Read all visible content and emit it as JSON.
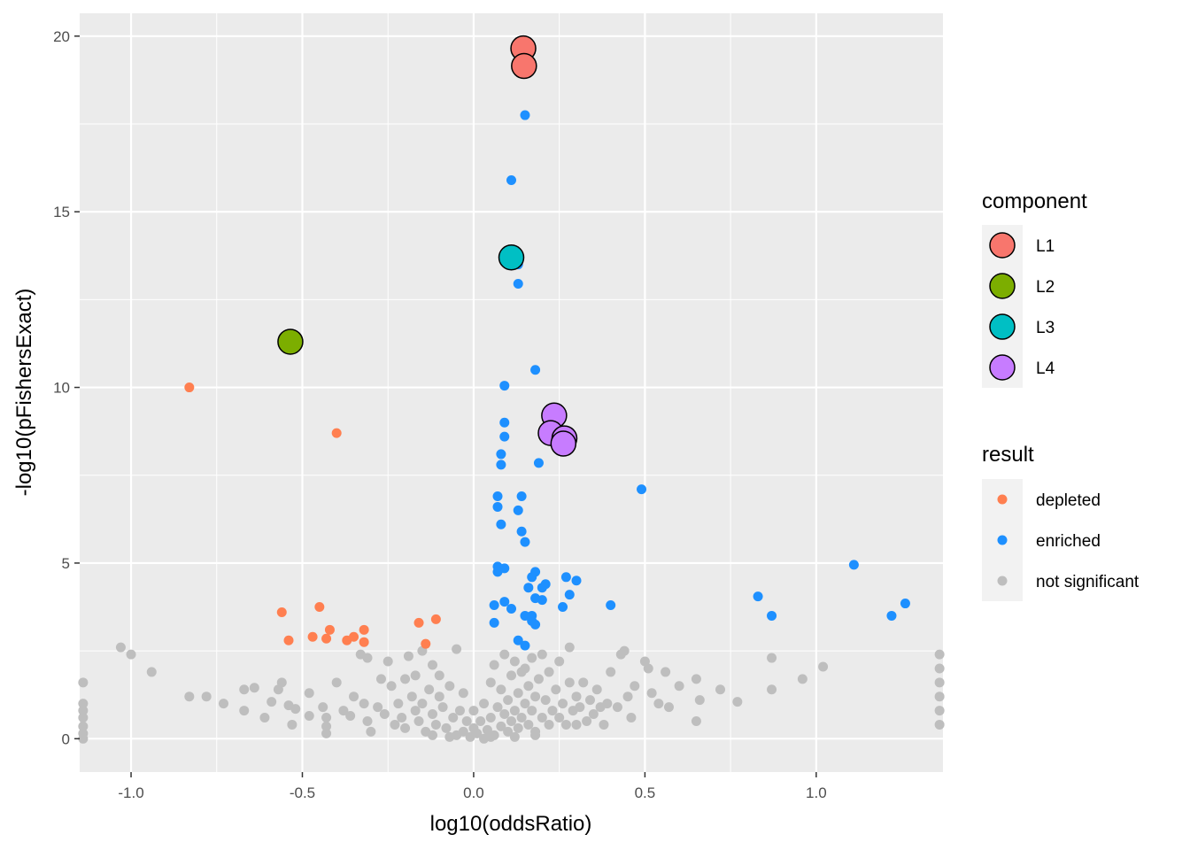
{
  "chart_data": {
    "type": "scatter",
    "title": "",
    "xlabel": "log10(oddsRatio)",
    "ylabel": "-log10(pFishersExact)",
    "xlim": [
      -1.15,
      1.37
    ],
    "ylim": [
      -0.95,
      20.65
    ],
    "x_ticks": [
      -1.0,
      -0.5,
      0.0,
      0.5,
      1.0
    ],
    "x_tick_labels": [
      "-1.0",
      "-0.5",
      "0.0",
      "0.5",
      "1.0"
    ],
    "y_ticks": [
      0,
      5,
      10,
      15,
      20
    ],
    "y_tick_labels": [
      "0",
      "5",
      "10",
      "15",
      "20"
    ],
    "grid": true,
    "legend_position": "right",
    "legends": [
      {
        "title": "component",
        "entries": [
          {
            "label": "L1",
            "color": "#F8766D"
          },
          {
            "label": "L2",
            "color": "#7CAE00"
          },
          {
            "label": "L3",
            "color": "#00BFC4"
          },
          {
            "label": "L4",
            "color": "#C77CFF"
          }
        ]
      },
      {
        "title": "result",
        "entries": [
          {
            "label": "depleted",
            "color": "#FF7F50"
          },
          {
            "label": "enriched",
            "color": "#1E90FF"
          },
          {
            "label": "not significant",
            "color": "#BEBEBE"
          }
        ]
      }
    ],
    "series": [
      {
        "name": "not significant",
        "color": "#BEBEBE",
        "points": [
          [
            -1.14,
            1.6
          ],
          [
            -1.14,
            1.0
          ],
          [
            -1.14,
            0.8
          ],
          [
            -1.14,
            0.6
          ],
          [
            -1.14,
            0.35
          ],
          [
            -1.14,
            0.15
          ],
          [
            -1.14,
            0.0
          ],
          [
            -1.03,
            2.6
          ],
          [
            -1.0,
            2.4
          ],
          [
            -0.94,
            1.9
          ],
          [
            -0.83,
            1.2
          ],
          [
            -0.78,
            1.2
          ],
          [
            -0.73,
            1.0
          ],
          [
            -0.67,
            1.4
          ],
          [
            -0.67,
            0.8
          ],
          [
            -0.64,
            1.45
          ],
          [
            -0.61,
            0.6
          ],
          [
            -0.59,
            1.05
          ],
          [
            -0.57,
            1.4
          ],
          [
            -0.56,
            1.6
          ],
          [
            -0.54,
            0.95
          ],
          [
            -0.53,
            0.4
          ],
          [
            -0.52,
            0.85
          ],
          [
            -0.48,
            1.3
          ],
          [
            -0.48,
            0.65
          ],
          [
            -0.44,
            0.9
          ],
          [
            -0.43,
            0.6
          ],
          [
            -0.43,
            0.35
          ],
          [
            -0.43,
            0.15
          ],
          [
            -0.4,
            1.6
          ],
          [
            -0.38,
            0.8
          ],
          [
            -0.36,
            0.65
          ],
          [
            -0.35,
            1.2
          ],
          [
            -0.33,
            2.4
          ],
          [
            -0.32,
            1.0
          ],
          [
            -0.31,
            0.5
          ],
          [
            -0.31,
            2.3
          ],
          [
            -0.3,
            0.2
          ],
          [
            -0.28,
            0.9
          ],
          [
            -0.27,
            1.7
          ],
          [
            -0.26,
            0.7
          ],
          [
            -0.25,
            2.2
          ],
          [
            -0.24,
            1.5
          ],
          [
            -0.23,
            0.4
          ],
          [
            -0.22,
            1.0
          ],
          [
            -0.21,
            0.6
          ],
          [
            -0.2,
            1.7
          ],
          [
            -0.2,
            0.3
          ],
          [
            -0.19,
            2.35
          ],
          [
            -0.18,
            1.2
          ],
          [
            -0.17,
            0.8
          ],
          [
            -0.17,
            1.8
          ],
          [
            -0.16,
            0.5
          ],
          [
            -0.15,
            2.5
          ],
          [
            -0.15,
            1.0
          ],
          [
            -0.14,
            0.2
          ],
          [
            -0.13,
            1.4
          ],
          [
            -0.12,
            0.7
          ],
          [
            -0.12,
            2.1
          ],
          [
            -0.11,
            0.4
          ],
          [
            -0.1,
            1.8
          ],
          [
            -0.1,
            1.2
          ],
          [
            -0.09,
            0.9
          ],
          [
            -0.08,
            0.3
          ],
          [
            -0.07,
            1.5
          ],
          [
            -0.06,
            0.6
          ],
          [
            -0.05,
            2.55
          ],
          [
            -0.05,
            0.1
          ],
          [
            -0.04,
            0.8
          ],
          [
            -0.03,
            1.3
          ],
          [
            -0.03,
            0.2
          ],
          [
            -0.02,
            0.5
          ],
          [
            -0.01,
            0.05
          ],
          [
            0.0,
            0.3
          ],
          [
            0.0,
            0.8
          ],
          [
            0.01,
            0.15
          ],
          [
            0.02,
            0.5
          ],
          [
            0.03,
            0.0
          ],
          [
            0.03,
            1.0
          ],
          [
            0.04,
            0.25
          ],
          [
            0.05,
            1.6
          ],
          [
            0.05,
            0.6
          ],
          [
            0.06,
            0.1
          ],
          [
            0.06,
            2.1
          ],
          [
            0.07,
            0.9
          ],
          [
            0.08,
            0.35
          ],
          [
            0.08,
            1.4
          ],
          [
            0.09,
            0.7
          ],
          [
            0.09,
            2.4
          ],
          [
            0.1,
            0.2
          ],
          [
            0.1,
            1.1
          ],
          [
            0.11,
            1.8
          ],
          [
            0.11,
            0.5
          ],
          [
            0.12,
            2.2
          ],
          [
            0.12,
            0.8
          ],
          [
            0.13,
            1.3
          ],
          [
            0.13,
            0.3
          ],
          [
            0.14,
            1.9
          ],
          [
            0.14,
            0.6
          ],
          [
            0.15,
            2.0
          ],
          [
            0.15,
            1.0
          ],
          [
            0.16,
            0.4
          ],
          [
            0.16,
            1.5
          ],
          [
            0.17,
            0.8
          ],
          [
            0.17,
            2.3
          ],
          [
            0.18,
            1.2
          ],
          [
            0.18,
            0.2
          ],
          [
            0.19,
            1.7
          ],
          [
            0.2,
            0.6
          ],
          [
            0.2,
            2.4
          ],
          [
            0.21,
            1.1
          ],
          [
            0.22,
            0.4
          ],
          [
            0.22,
            1.9
          ],
          [
            0.23,
            0.8
          ],
          [
            0.24,
            1.4
          ],
          [
            0.25,
            0.6
          ],
          [
            0.25,
            2.2
          ],
          [
            0.26,
            1.0
          ],
          [
            0.27,
            0.4
          ],
          [
            0.28,
            1.6
          ],
          [
            0.28,
            2.6
          ],
          [
            0.29,
            0.8
          ],
          [
            0.3,
            1.2
          ],
          [
            0.3,
            0.4
          ],
          [
            0.31,
            0.9
          ],
          [
            0.32,
            1.6
          ],
          [
            0.33,
            0.5
          ],
          [
            0.34,
            1.1
          ],
          [
            0.35,
            0.7
          ],
          [
            0.36,
            1.4
          ],
          [
            0.37,
            0.9
          ],
          [
            0.38,
            0.4
          ],
          [
            0.39,
            1.0
          ],
          [
            0.4,
            1.9
          ],
          [
            0.42,
            0.9
          ],
          [
            0.43,
            2.4
          ],
          [
            0.44,
            2.5
          ],
          [
            0.45,
            1.2
          ],
          [
            0.46,
            0.6
          ],
          [
            0.47,
            1.5
          ],
          [
            0.5,
            2.2
          ],
          [
            0.51,
            2.0
          ],
          [
            0.52,
            1.3
          ],
          [
            0.54,
            1.0
          ],
          [
            0.56,
            1.9
          ],
          [
            0.57,
            0.9
          ],
          [
            0.6,
            1.5
          ],
          [
            0.65,
            1.7
          ],
          [
            0.65,
            0.5
          ],
          [
            0.66,
            1.1
          ],
          [
            0.72,
            1.4
          ],
          [
            0.77,
            1.05
          ],
          [
            0.87,
            2.3
          ],
          [
            0.87,
            1.4
          ],
          [
            0.96,
            1.7
          ],
          [
            1.02,
            2.05
          ],
          [
            1.36,
            2.4
          ],
          [
            1.36,
            2.0
          ],
          [
            1.36,
            1.6
          ],
          [
            1.36,
            1.2
          ],
          [
            1.36,
            0.8
          ],
          [
            1.36,
            0.4
          ],
          [
            -0.07,
            0.05
          ],
          [
            0.05,
            0.05
          ],
          [
            0.12,
            0.05
          ],
          [
            0.18,
            0.1
          ],
          [
            -0.12,
            0.1
          ]
        ]
      },
      {
        "name": "depleted",
        "color": "#FF7F50",
        "points": [
          [
            -0.83,
            10.0
          ],
          [
            -0.4,
            8.7
          ],
          [
            -0.56,
            3.6
          ],
          [
            -0.54,
            2.8
          ],
          [
            -0.47,
            2.9
          ],
          [
            -0.45,
            3.75
          ],
          [
            -0.43,
            2.85
          ],
          [
            -0.42,
            3.1
          ],
          [
            -0.37,
            2.8
          ],
          [
            -0.35,
            2.9
          ],
          [
            -0.32,
            3.1
          ],
          [
            -0.32,
            2.75
          ],
          [
            -0.16,
            3.3
          ],
          [
            -0.14,
            2.7
          ],
          [
            -0.11,
            3.4
          ]
        ]
      },
      {
        "name": "enriched",
        "color": "#1E90FF",
        "points": [
          [
            0.15,
            17.75
          ],
          [
            0.11,
            15.9
          ],
          [
            0.13,
            13.5
          ],
          [
            0.13,
            12.95
          ],
          [
            0.18,
            10.5
          ],
          [
            0.09,
            10.05
          ],
          [
            0.09,
            9.0
          ],
          [
            0.09,
            8.6
          ],
          [
            0.08,
            8.1
          ],
          [
            0.08,
            7.8
          ],
          [
            0.19,
            7.85
          ],
          [
            0.07,
            6.9
          ],
          [
            0.14,
            6.9
          ],
          [
            0.07,
            6.6
          ],
          [
            0.13,
            6.5
          ],
          [
            0.08,
            6.1
          ],
          [
            0.14,
            5.9
          ],
          [
            0.15,
            5.6
          ],
          [
            0.07,
            4.9
          ],
          [
            0.09,
            4.85
          ],
          [
            0.17,
            4.6
          ],
          [
            0.18,
            4.75
          ],
          [
            0.07,
            4.75
          ],
          [
            0.2,
            4.3
          ],
          [
            0.16,
            4.3
          ],
          [
            0.21,
            4.4
          ],
          [
            0.27,
            4.6
          ],
          [
            0.3,
            4.5
          ],
          [
            0.28,
            4.1
          ],
          [
            0.09,
            3.9
          ],
          [
            0.18,
            4.0
          ],
          [
            0.2,
            3.95
          ],
          [
            0.06,
            3.8
          ],
          [
            0.11,
            3.7
          ],
          [
            0.15,
            3.5
          ],
          [
            0.17,
            3.5
          ],
          [
            0.17,
            3.35
          ],
          [
            0.18,
            3.25
          ],
          [
            0.26,
            3.75
          ],
          [
            0.4,
            3.8
          ],
          [
            0.06,
            3.3
          ],
          [
            0.13,
            2.8
          ],
          [
            0.15,
            2.65
          ],
          [
            0.49,
            7.1
          ],
          [
            0.83,
            4.05
          ],
          [
            0.87,
            3.5
          ],
          [
            1.11,
            4.95
          ],
          [
            1.22,
            3.5
          ],
          [
            1.26,
            3.85
          ]
        ]
      }
    ],
    "highlighted": [
      {
        "label": "L1",
        "color": "#F8766D",
        "points": [
          [
            0.145,
            19.65
          ],
          [
            0.147,
            19.15
          ]
        ]
      },
      {
        "label": "L2",
        "color": "#7CAE00",
        "points": [
          [
            -0.535,
            11.3
          ]
        ]
      },
      {
        "label": "L3",
        "color": "#00BFC4",
        "points": [
          [
            0.11,
            13.7
          ]
        ]
      },
      {
        "label": "L4",
        "color": "#C77CFF",
        "points": [
          [
            0.235,
            9.2
          ],
          [
            0.225,
            8.7
          ],
          [
            0.265,
            8.55
          ],
          [
            0.262,
            8.4
          ]
        ]
      }
    ]
  }
}
